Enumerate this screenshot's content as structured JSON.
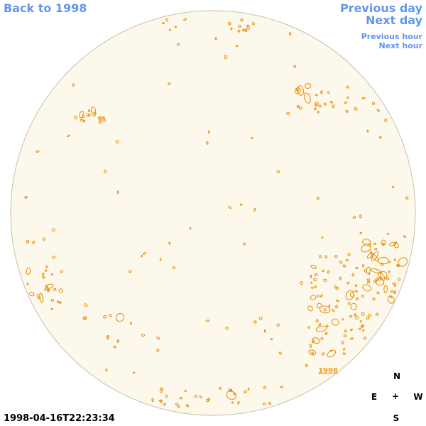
{
  "nav": {
    "back": "Back to 1998",
    "prev_day": "Previous day",
    "next_day": "Next day",
    "prev_hour": "Previous hour",
    "next_hour": "Next hour"
  },
  "compass": {
    "north": "N",
    "south": "S",
    "east": "E",
    "west": "W",
    "center": "+"
  },
  "timestamp": "1998-04-16T22:23:34",
  "region_label": "1998",
  "colors": {
    "disk_fill": "#fdf8ec",
    "disk_border": "#c8c0b0",
    "contour": "#e88a00",
    "link": "#6495ed"
  }
}
